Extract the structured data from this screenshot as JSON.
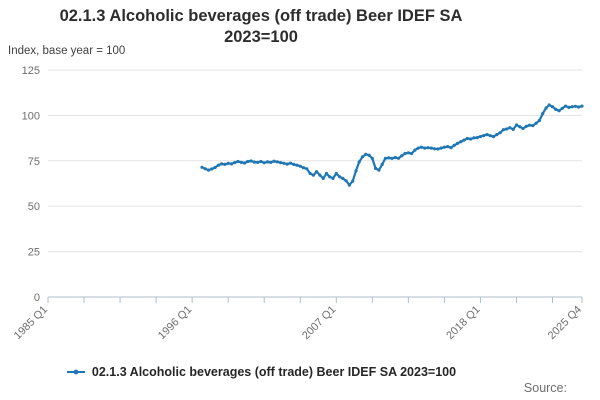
{
  "title": {
    "line1": "02.1.3 Alcoholic beverages (off trade) Beer IDEF SA",
    "line2": "2023=100"
  },
  "subtitle": "Index, base year = 100",
  "source_label": "Source:",
  "legend": {
    "marker_icon": "line-dot-marker",
    "label": "02.1.3 Alcoholic beverages (off trade) Beer IDEF SA 2023=100"
  },
  "colors": {
    "line": "#1f77b4",
    "grid": "#e3e3e3",
    "axis": "#adbfcc",
    "tick_label": "#6e6e6e"
  },
  "chart_data": {
    "type": "line",
    "title": "02.1.3 Alcoholic beverages (off trade) Beer IDEF SA 2023=100",
    "ylabel": "Index, base year = 100",
    "ylim": [
      0,
      125
    ],
    "yticks": [
      0,
      25,
      50,
      75,
      100,
      125
    ],
    "grid": "horizontal",
    "legend_position": "bottom",
    "x_axis": {
      "start": "1985 Q1",
      "end": "2025 Q4",
      "frequency": "quarterly",
      "labeled_ticks": [
        "1985 Q1",
        "1996 Q1",
        "2007 Q1",
        "2018 Q1",
        "2025 Q4"
      ],
      "minor_tick_every_quarters": 11
    },
    "series": [
      {
        "name": "02.1.3 Alcoholic beverages (off trade) Beer IDEF SA 2023=100",
        "start_quarter": "1996 Q4",
        "frequency": "quarterly",
        "values": [
          71.4,
          70.6,
          69.9,
          70.5,
          71.3,
          72.6,
          73.3,
          73.0,
          73.6,
          73.3,
          74.0,
          74.6,
          74.1,
          73.8,
          74.6,
          74.9,
          74.3,
          74.1,
          74.6,
          73.9,
          74.4,
          74.1,
          74.8,
          74.4,
          74.0,
          73.6,
          73.2,
          73.7,
          73.0,
          72.6,
          72.0,
          71.2,
          70.6,
          68.0,
          67.1,
          69.0,
          67.1,
          65.3,
          68.0,
          66.2,
          65.3,
          68.0,
          66.2,
          65.3,
          64.0,
          61.6,
          63.8,
          69.5,
          74.4,
          77.2,
          78.6,
          78.1,
          76.3,
          70.8,
          69.9,
          73.0,
          76.4,
          76.6,
          76.3,
          76.8,
          76.4,
          77.8,
          79.0,
          79.4,
          79.0,
          80.9,
          82.0,
          82.5,
          82.0,
          82.2,
          82.0,
          81.6,
          81.5,
          82.0,
          82.5,
          82.8,
          82.2,
          83.5,
          84.6,
          85.5,
          86.4,
          87.3,
          87.0,
          87.6,
          87.8,
          88.3,
          88.9,
          89.4,
          88.8,
          88.3,
          89.4,
          90.5,
          92.1,
          92.5,
          93.2,
          92.3,
          94.7,
          93.8,
          92.8,
          94.0,
          94.6,
          94.4,
          95.7,
          97.2,
          101.0,
          104.0,
          105.7,
          104.8,
          103.3,
          102.6,
          103.9,
          105.1,
          104.4,
          104.8,
          105.0,
          104.6,
          105.1
        ]
      }
    ]
  }
}
